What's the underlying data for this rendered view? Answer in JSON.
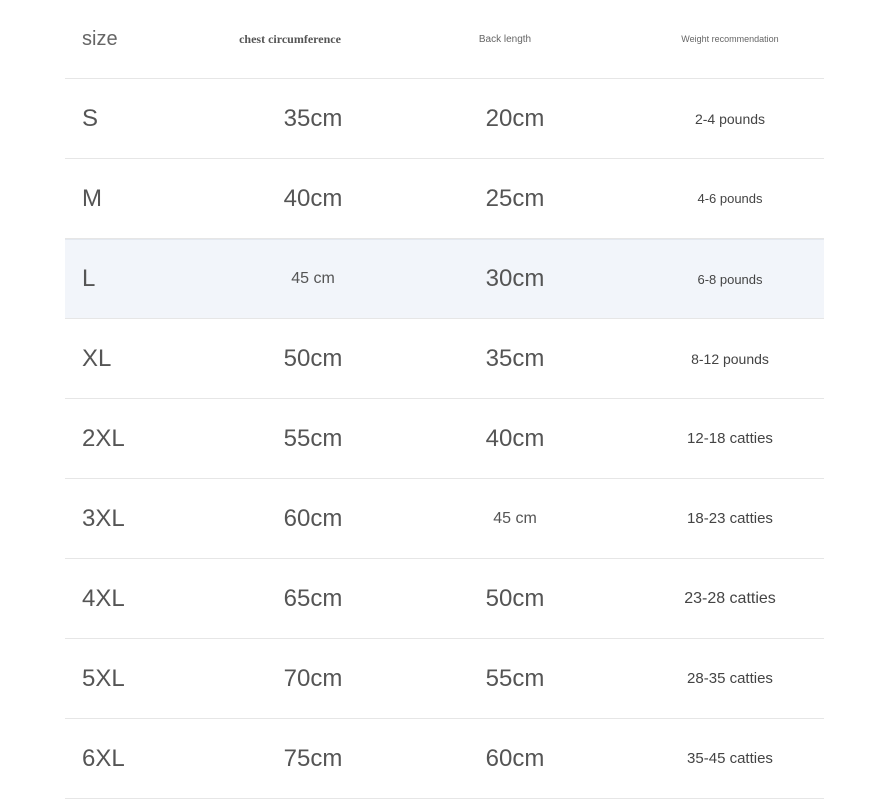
{
  "table": {
    "header": [
      "size",
      "chest circumference",
      "Back length",
      "Weight recommendation"
    ],
    "rows": [
      [
        "S",
        "35cm",
        "20cm",
        "2-4 pounds"
      ],
      [
        "M",
        "40cm",
        "25cm",
        "4-6 pounds"
      ],
      [
        "L",
        "45 cm",
        "30cm",
        "6-8 pounds"
      ],
      [
        "XL",
        "50cm",
        "35cm",
        "8-12 pounds"
      ],
      [
        "2XL",
        "55cm",
        "40cm",
        "12-18 catties"
      ],
      [
        "3XL",
        "60cm",
        "45 cm",
        "18-23 catties"
      ],
      [
        "4XL",
        "65cm",
        "50cm",
        "23-28 catties"
      ],
      [
        "5XL",
        "70cm",
        "55cm",
        "28-35 catties"
      ],
      [
        "6XL",
        "75cm",
        "60cm",
        "35-45 catties"
      ]
    ]
  }
}
